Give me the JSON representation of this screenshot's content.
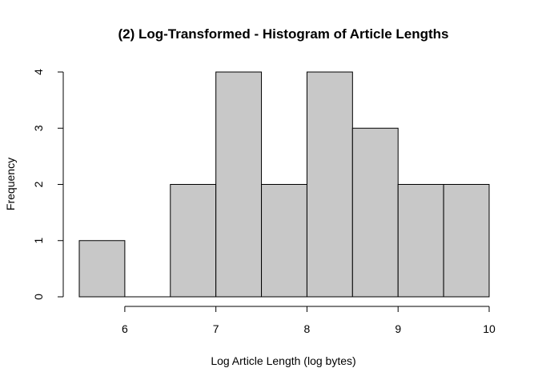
{
  "chart_data": {
    "type": "bar",
    "title": "(2) Log-Transformed - Histogram of Article Lengths",
    "xlabel": "Log Article Length (log bytes)",
    "ylabel": "Frequency",
    "bins": [
      {
        "start": 5.5,
        "end": 6.0,
        "count": 1
      },
      {
        "start": 6.0,
        "end": 6.5,
        "count": 0
      },
      {
        "start": 6.5,
        "end": 7.0,
        "count": 2
      },
      {
        "start": 7.0,
        "end": 7.5,
        "count": 4
      },
      {
        "start": 7.5,
        "end": 8.0,
        "count": 2
      },
      {
        "start": 8.0,
        "end": 8.5,
        "count": 4
      },
      {
        "start": 8.5,
        "end": 9.0,
        "count": 3
      },
      {
        "start": 9.0,
        "end": 9.5,
        "count": 2
      },
      {
        "start": 9.5,
        "end": 10.0,
        "count": 2
      }
    ],
    "xticks": [
      6,
      7,
      8,
      9,
      10
    ],
    "yticks": [
      0,
      1,
      2,
      3,
      4
    ],
    "xlim": [
      5.5,
      10
    ],
    "ylim": [
      0,
      4
    ],
    "bar_color": "#c8c8c8",
    "grid": false
  }
}
